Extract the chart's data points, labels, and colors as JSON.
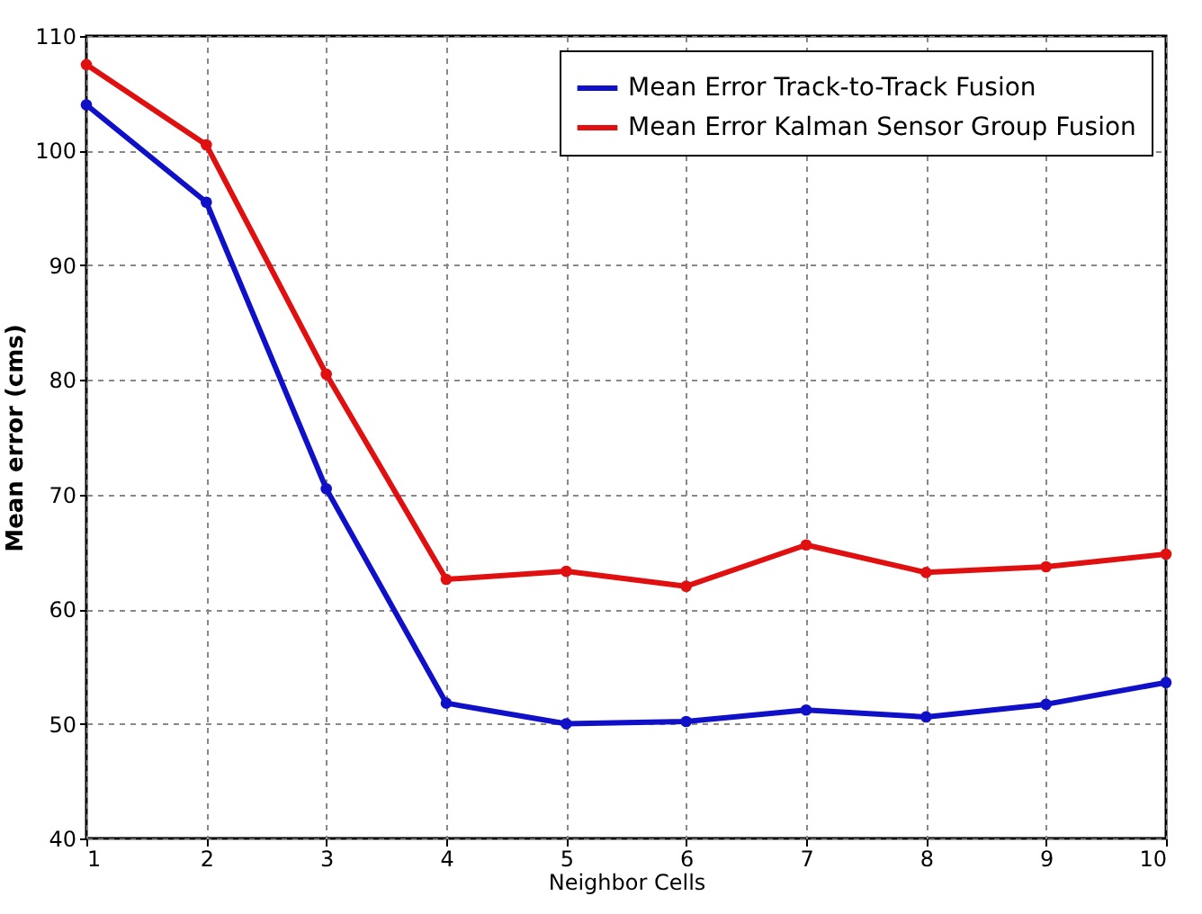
{
  "chart_data": {
    "type": "line",
    "xlabel": "Neighbor Cells",
    "ylabel": "Mean error (cms)",
    "x": [
      1,
      2,
      3,
      4,
      5,
      6,
      7,
      8,
      9,
      10
    ],
    "series": [
      {
        "name": "Mean Error Track-to-Track Fusion",
        "color": "#1010c8",
        "values": [
          104,
          95.5,
          70.5,
          51.8,
          50,
          50.2,
          51.2,
          50.6,
          51.7,
          53.6
        ]
      },
      {
        "name": "Mean Error Kalman Sensor Group Fusion",
        "color": "#e01010",
        "values": [
          107.5,
          100.5,
          80.5,
          62.6,
          63.3,
          62,
          65.6,
          63.2,
          63.7,
          64.8
        ]
      }
    ],
    "xlim": [
      1,
      10
    ],
    "xticks": [
      1,
      2,
      3,
      4,
      5,
      6,
      7,
      8,
      9,
      10
    ],
    "ylim": [
      40,
      110
    ],
    "yticks": [
      40,
      50,
      60,
      70,
      80,
      90,
      100,
      110
    ],
    "grid": true,
    "legend": "top right",
    "marker": "circle",
    "line_style": "solid"
  }
}
